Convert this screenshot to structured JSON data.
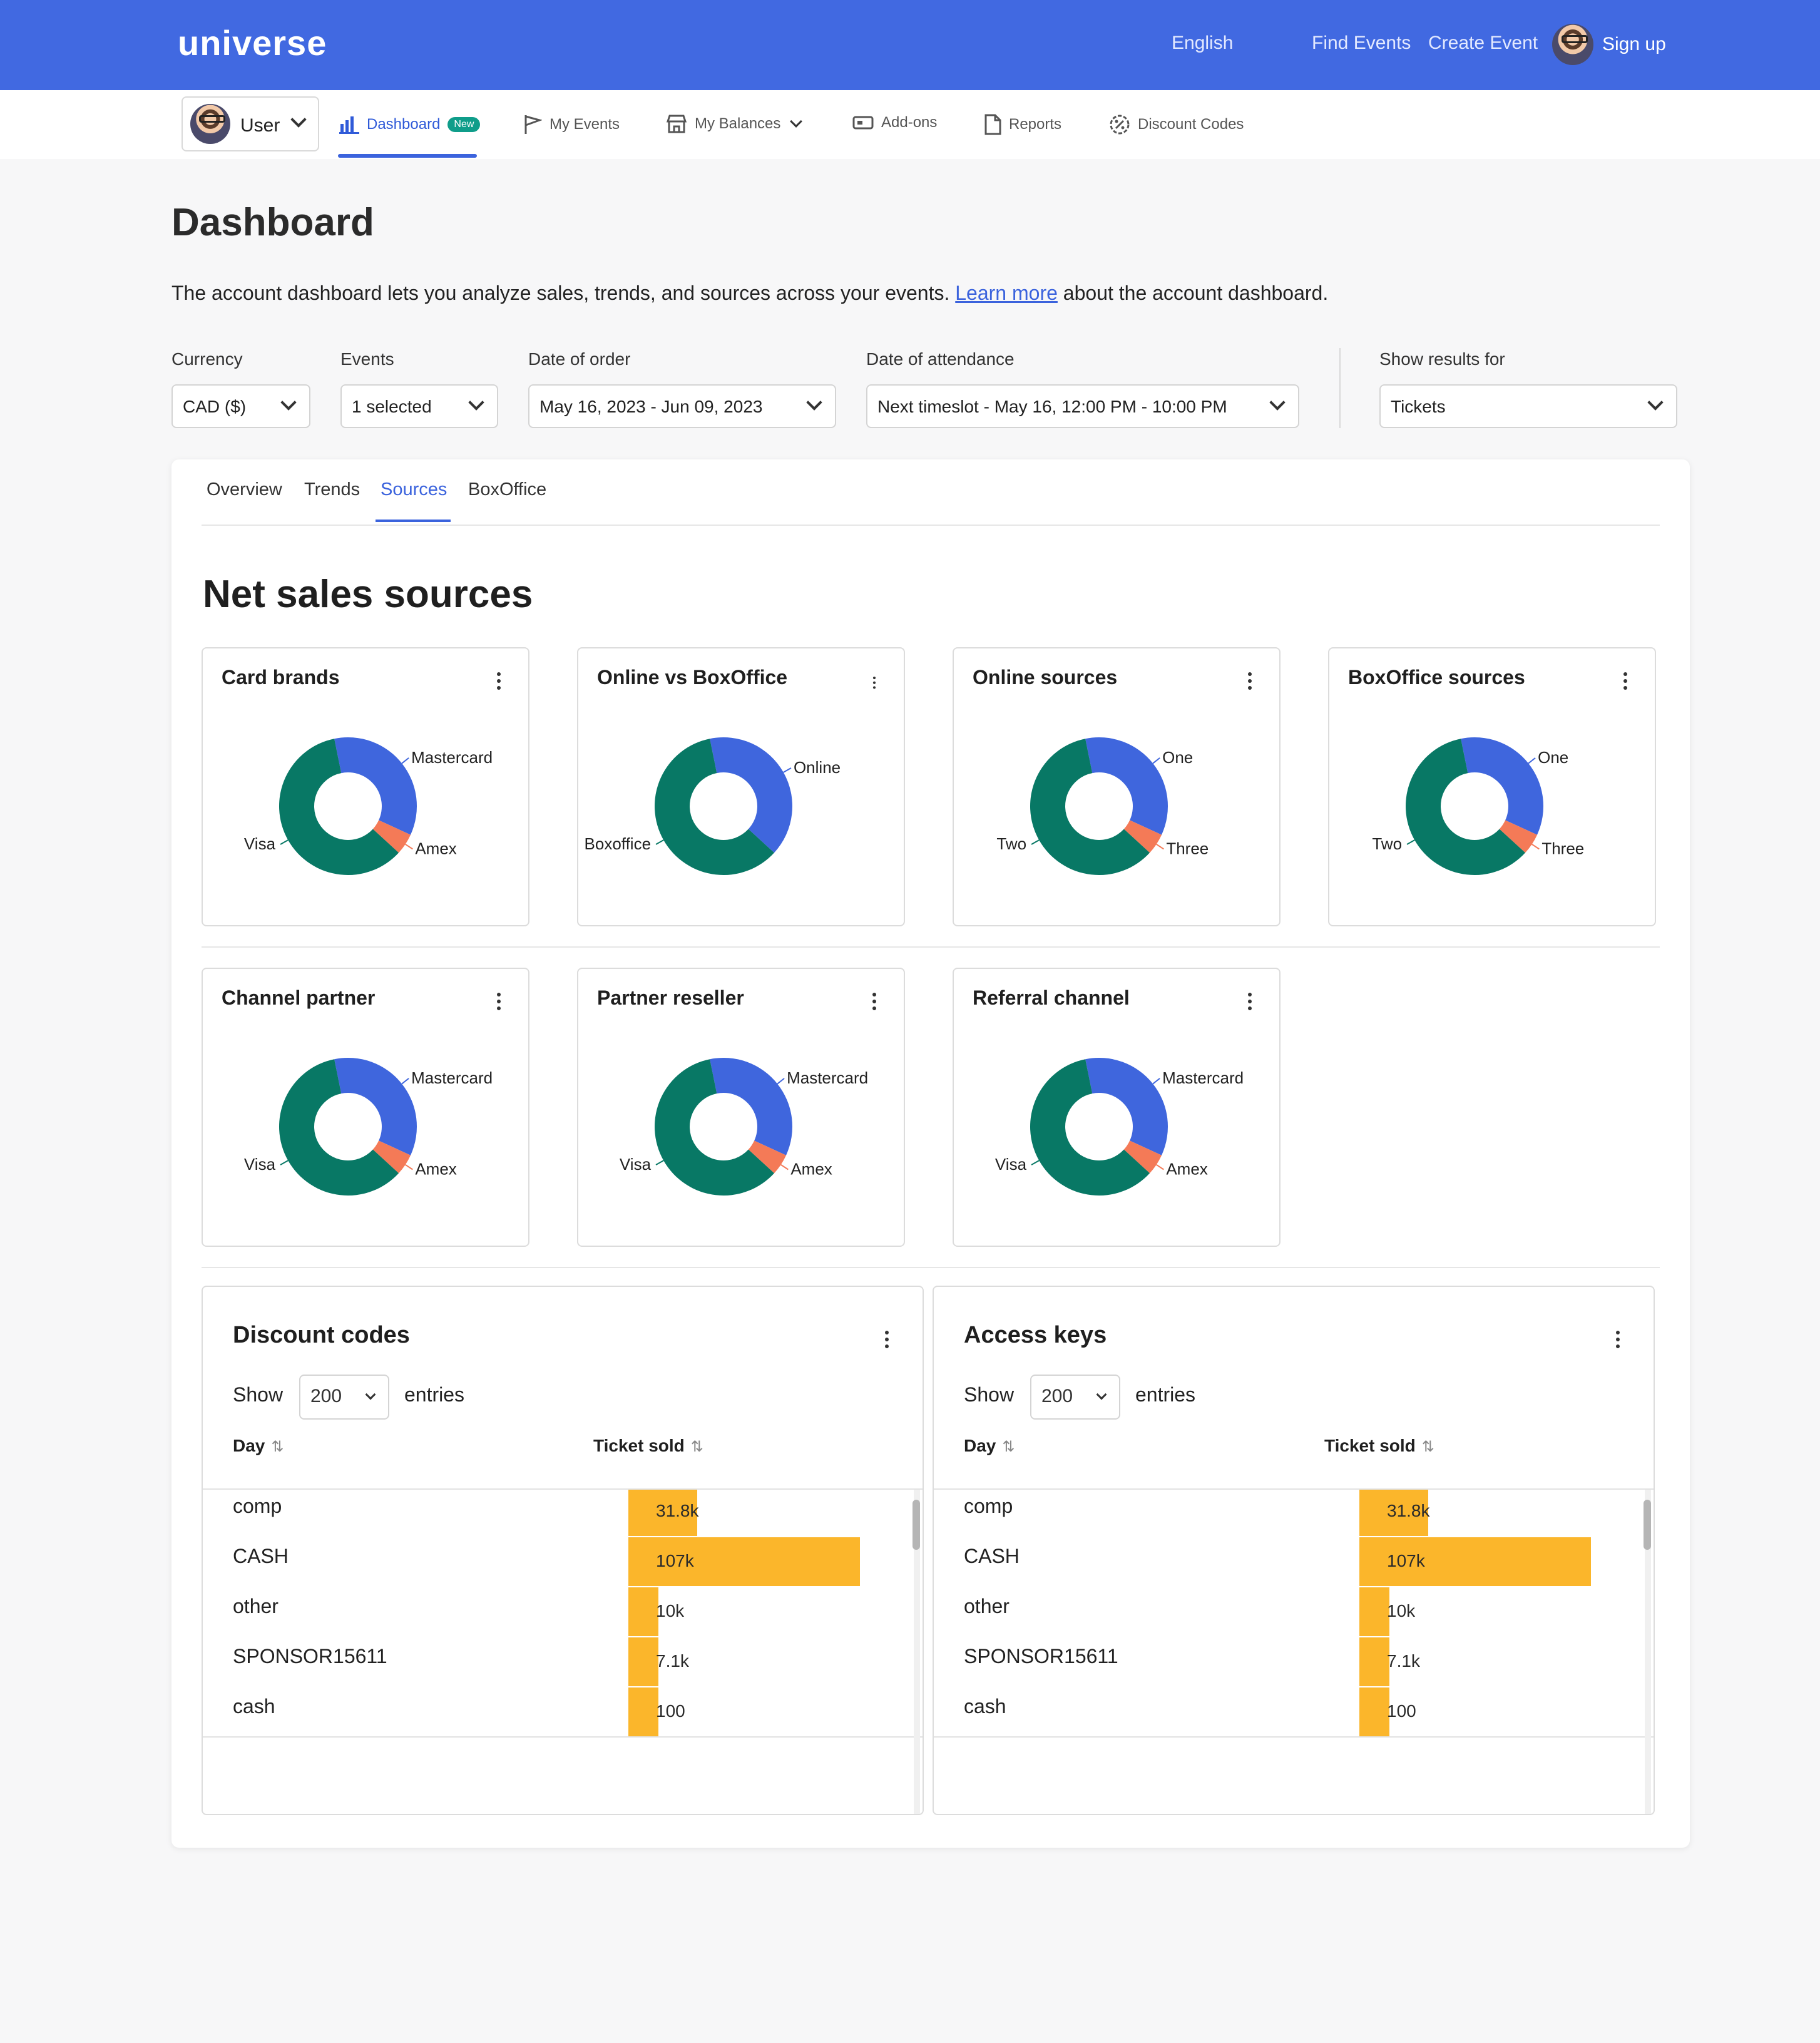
{
  "topbar": {
    "logo": "universe",
    "language": "English",
    "find_events": "Find Events",
    "create_event": "Create Event",
    "sign_up": "Sign up"
  },
  "subnav": {
    "user_label": "User",
    "items": [
      {
        "label": "Dashboard",
        "badge": "New",
        "icon": "bar-chart-icon"
      },
      {
        "label": "My Events",
        "icon": "flag-icon"
      },
      {
        "label": "My Balances",
        "icon": "store-icon"
      },
      {
        "label": "Add-ons",
        "icon": "ticket-icon"
      },
      {
        "label": "Reports",
        "icon": "document-icon"
      },
      {
        "label": "Discount Codes",
        "icon": "discount-icon"
      }
    ]
  },
  "page": {
    "title": "Dashboard",
    "description_before": "The account dashboard lets you analyze sales, trends, and sources across your events. ",
    "learn_more": "Learn more",
    "description_after": " about the account dashboard."
  },
  "filters": {
    "currency": {
      "label": "Currency",
      "value": "CAD ($)"
    },
    "events": {
      "label": "Events",
      "value": "1 selected"
    },
    "date_of_order": {
      "label": "Date of order",
      "value": "May 16, 2023 - Jun 09, 2023"
    },
    "date_of_attendance": {
      "label": "Date of attendance",
      "value": "Next timeslot - May 16, 12:00 PM - 10:00 PM"
    },
    "show_results_for": {
      "label": "Show results for",
      "value": "Tickets"
    }
  },
  "tabs": [
    "Overview",
    "Trends",
    "Sources",
    "BoxOffice"
  ],
  "active_tab": "Sources",
  "section_title": "Net sales sources",
  "colors": {
    "blue": "#3f66dd",
    "green": "#087865",
    "orange": "#f47a57",
    "bar": "#fbb62b"
  },
  "chart_data": [
    {
      "type": "pie",
      "title": "Card brands",
      "labels": [
        "Mastercard",
        "Amex",
        "Visa"
      ],
      "values": [
        35,
        5,
        60
      ]
    },
    {
      "type": "pie",
      "title": "Online vs BoxOffice",
      "labels": [
        "Online",
        "Boxoffice"
      ],
      "values": [
        40,
        60
      ]
    },
    {
      "type": "pie",
      "title": "Online sources",
      "labels": [
        "One",
        "Three",
        "Two"
      ],
      "values": [
        35,
        5,
        60
      ]
    },
    {
      "type": "pie",
      "title": "BoxOffice sources",
      "labels": [
        "One",
        "Three",
        "Two"
      ],
      "values": [
        35,
        5,
        60
      ]
    },
    {
      "type": "pie",
      "title": "Channel partner",
      "labels": [
        "Mastercard",
        "Amex",
        "Visa"
      ],
      "values": [
        35,
        5,
        60
      ]
    },
    {
      "type": "pie",
      "title": "Partner reseller",
      "labels": [
        "Mastercard",
        "Amex",
        "Visa"
      ],
      "values": [
        35,
        5,
        60
      ]
    },
    {
      "type": "pie",
      "title": "Referral channel",
      "labels": [
        "Mastercard",
        "Amex",
        "Visa"
      ],
      "values": [
        35,
        5,
        60
      ]
    }
  ],
  "tables": [
    {
      "title": "Discount codes",
      "show": "Show",
      "page_size": "200",
      "entries": "entries",
      "col_day": "Day",
      "col_tickets": "Ticket sold",
      "rows": [
        {
          "label": "comp",
          "value": 31800,
          "display": "31.8k"
        },
        {
          "label": "CASH",
          "value": 107000,
          "display": "107k"
        },
        {
          "label": "other",
          "value": 10000,
          "display": "10k"
        },
        {
          "label": "SPONSOR15611",
          "value": 7100,
          "display": "7.1k"
        },
        {
          "label": "cash",
          "value": 100,
          "display": "100"
        }
      ]
    },
    {
      "title": "Access keys",
      "show": "Show",
      "page_size": "200",
      "entries": "entries",
      "col_day": "Day",
      "col_tickets": "Ticket sold",
      "rows": [
        {
          "label": "comp",
          "value": 31800,
          "display": "31.8k"
        },
        {
          "label": "CASH",
          "value": 107000,
          "display": "107k"
        },
        {
          "label": "other",
          "value": 10000,
          "display": "10k"
        },
        {
          "label": "SPONSOR15611",
          "value": 7100,
          "display": "7.1k"
        },
        {
          "label": "cash",
          "value": 100,
          "display": "100"
        }
      ]
    }
  ]
}
